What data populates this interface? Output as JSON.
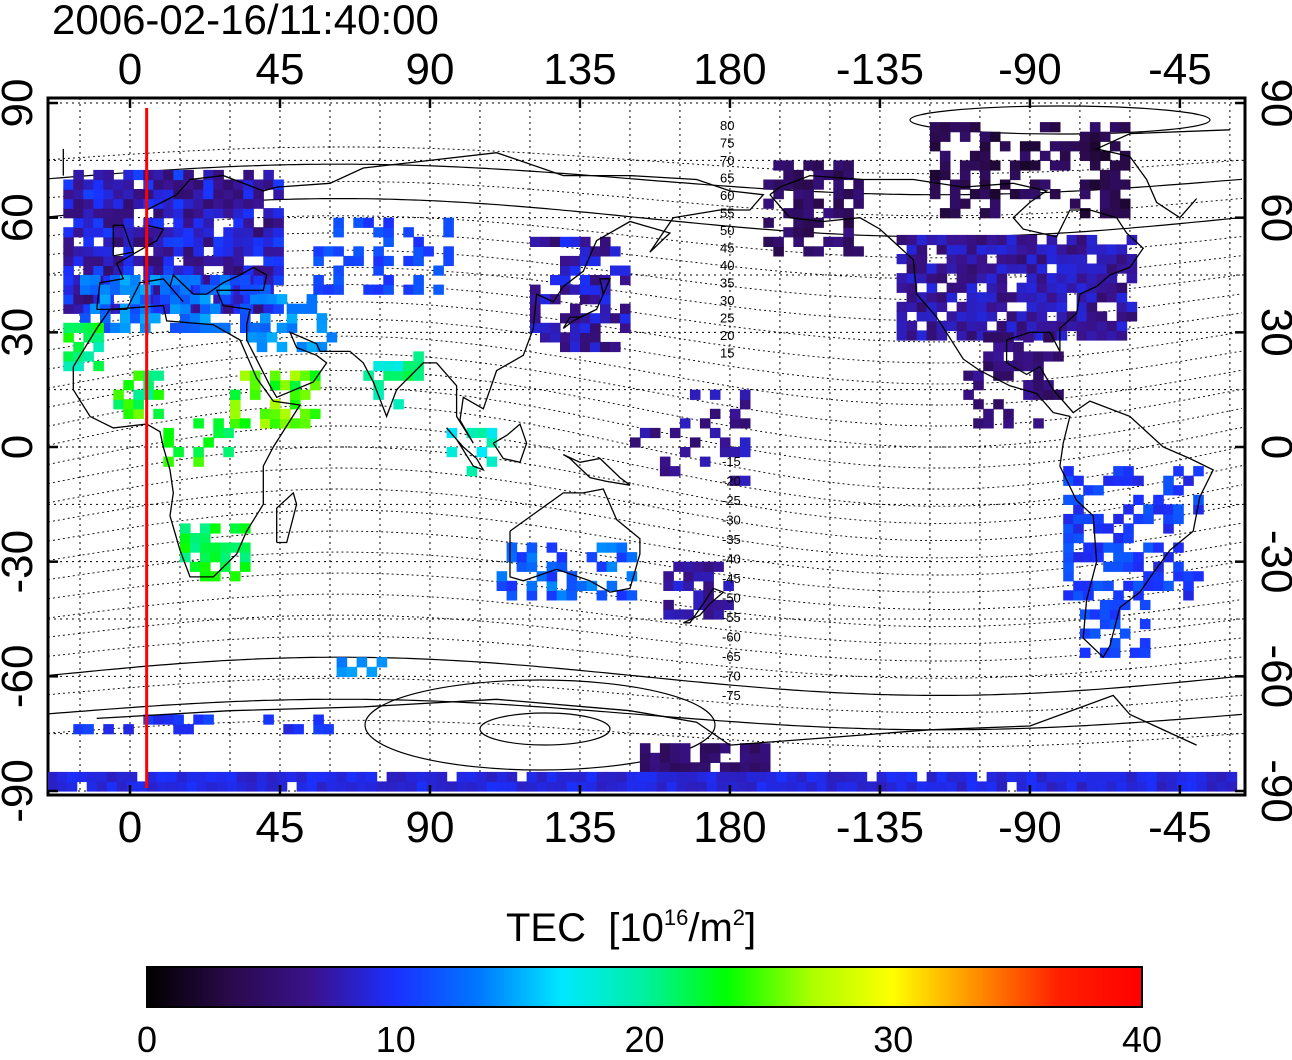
{
  "title": "2006-02-16/11:40:00",
  "map": {
    "type": "global TEC map",
    "top_lon_labels": [
      "0",
      "45",
      "90",
      "135",
      "180",
      "-135",
      "-90",
      "-45"
    ],
    "bottom_lon_labels": [
      "0",
      "45",
      "90",
      "135",
      "180",
      "-135",
      "-90",
      "-45"
    ],
    "left_lat_labels": [
      "90",
      "60",
      "30",
      "0",
      "-30",
      "-60",
      "-90"
    ],
    "right_lat_labels": [
      "90",
      "60",
      "30",
      "0",
      "-30",
      "-60",
      "-90"
    ],
    "lon_ticks": [
      0,
      45,
      90,
      135,
      180,
      -135,
      -90,
      -45
    ],
    "lat_ticks": [
      90,
      60,
      30,
      0,
      -30,
      -60,
      -90
    ],
    "terminator_longitude": 5,
    "terminator_color": "#ff0000",
    "contour_labels_north": [
      "80",
      "75",
      "70",
      "65",
      "60",
      "55",
      "50",
      "45",
      "40",
      "35",
      "30",
      "25",
      "20",
      "15"
    ],
    "contour_labels_south": [
      "-15",
      "-20",
      "-25",
      "-30",
      "-35",
      "-40",
      "-45",
      "-50",
      "-55",
      "-60",
      "-65",
      "-70",
      "-75"
    ]
  },
  "colorbar": {
    "title_main": "TEC",
    "title_unit_pre": "[10",
    "title_unit_exp": "16",
    "title_unit_mid": "/m",
    "title_unit_exp2": "2",
    "title_unit_post": "]",
    "min": 0,
    "max": 40,
    "tick_labels": [
      "0",
      "10",
      "20",
      "30",
      "40"
    ],
    "colors": [
      "#000000",
      "#2a0a4a",
      "#3a128f",
      "#1a30ff",
      "#0078ff",
      "#00e8ff",
      "#00f0a0",
      "#00ff00",
      "#a8ff00",
      "#ffff00",
      "#ff9000",
      "#ff2000",
      "#ff0000"
    ]
  }
}
